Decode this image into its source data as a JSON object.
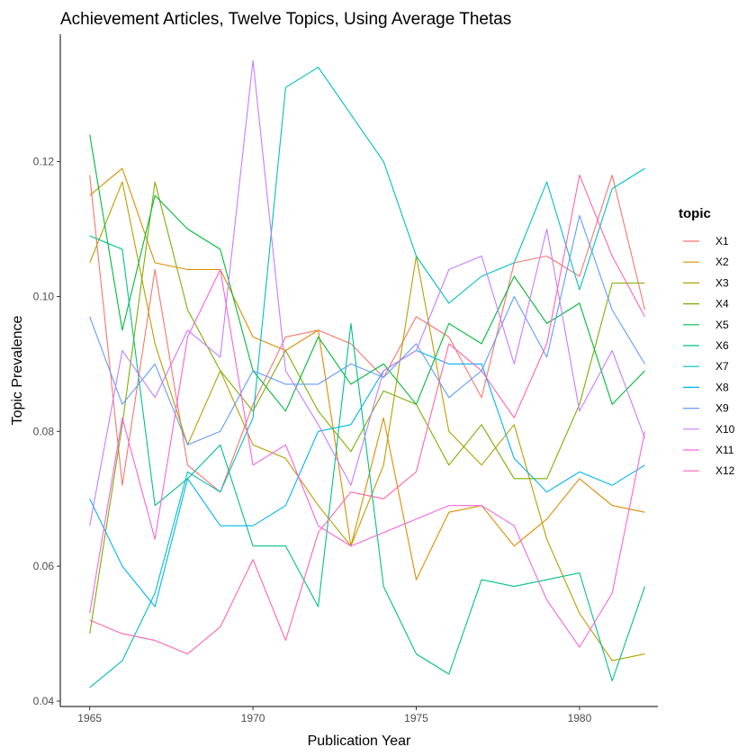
{
  "chart_data": {
    "type": "line",
    "title": "Achievement Articles, Twelve Topics, Using Average Thetas",
    "xlabel": "Publication Year",
    "ylabel": "Topic Prevalence",
    "xlim": [
      1964.1,
      1982.4
    ],
    "ylim": [
      0.0392,
      0.1389
    ],
    "x_ticks": [
      1965,
      1970,
      1975,
      1980
    ],
    "y_ticks": [
      0.04,
      0.06,
      0.08,
      0.1,
      0.12
    ],
    "y_tick_labels": [
      "0.04",
      "0.06",
      "0.08",
      "0.10",
      "0.12"
    ],
    "grid": false,
    "legend": {
      "title": "topic",
      "position": "right"
    },
    "x": [
      1965,
      1966,
      1967,
      1968,
      1969,
      1970,
      1971,
      1972,
      1973,
      1974,
      1975,
      1976,
      1977,
      1978,
      1979,
      1980,
      1981,
      1982
    ],
    "series": [
      {
        "name": "X1",
        "color": "#F8766D",
        "values": [
          0.118,
          0.072,
          0.104,
          0.075,
          0.071,
          0.084,
          0.094,
          0.095,
          0.093,
          0.088,
          0.097,
          0.094,
          0.085,
          0.105,
          0.106,
          0.103,
          0.118,
          0.098
        ]
      },
      {
        "name": "X2",
        "color": "#DE8C00",
        "values": [
          0.115,
          0.119,
          0.105,
          0.104,
          0.104,
          0.094,
          0.092,
          0.095,
          0.063,
          0.082,
          0.058,
          0.068,
          0.069,
          0.063,
          0.067,
          0.073,
          0.069,
          0.068
        ]
      },
      {
        "name": "X3",
        "color": "#B79F00",
        "values": [
          0.105,
          0.117,
          0.093,
          0.078,
          0.089,
          0.078,
          0.076,
          0.069,
          0.063,
          0.075,
          0.106,
          0.08,
          0.075,
          0.081,
          0.064,
          0.053,
          0.046,
          0.047
        ]
      },
      {
        "name": "X4",
        "color": "#7CAE00",
        "values": [
          0.05,
          0.081,
          0.117,
          0.098,
          0.089,
          0.083,
          0.092,
          0.083,
          0.077,
          0.086,
          0.084,
          0.075,
          0.081,
          0.073,
          0.073,
          0.084,
          0.102,
          0.102
        ]
      },
      {
        "name": "X5",
        "color": "#00BA38",
        "values": [
          0.124,
          0.095,
          0.115,
          0.11,
          0.107,
          0.089,
          0.083,
          0.094,
          0.087,
          0.09,
          0.084,
          0.096,
          0.093,
          0.103,
          0.096,
          0.099,
          0.084,
          0.089
        ]
      },
      {
        "name": "X6",
        "color": "#00C08B",
        "values": [
          0.109,
          0.107,
          0.069,
          0.073,
          0.078,
          0.063,
          0.063,
          0.054,
          0.096,
          0.057,
          0.047,
          0.044,
          0.058,
          0.057,
          0.058,
          0.059,
          0.043,
          0.057
        ]
      },
      {
        "name": "X7",
        "color": "#00BFC4",
        "values": [
          0.042,
          0.046,
          0.056,
          0.074,
          0.071,
          0.082,
          0.131,
          0.134,
          0.127,
          0.12,
          0.106,
          0.099,
          0.103,
          0.105,
          0.117,
          0.101,
          0.116,
          0.119
        ]
      },
      {
        "name": "X8",
        "color": "#00B4F0",
        "values": [
          0.07,
          0.06,
          0.054,
          0.073,
          0.066,
          0.066,
          0.069,
          0.08,
          0.081,
          0.089,
          0.092,
          0.09,
          0.09,
          0.076,
          0.071,
          0.074,
          0.072,
          0.075
        ]
      },
      {
        "name": "X9",
        "color": "#619CFF",
        "values": [
          0.097,
          0.084,
          0.09,
          0.078,
          0.08,
          0.089,
          0.087,
          0.087,
          0.09,
          0.088,
          0.093,
          0.085,
          0.089,
          0.1,
          0.091,
          0.112,
          0.098,
          0.09
        ]
      },
      {
        "name": "X10",
        "color": "#C77CFF",
        "values": [
          0.066,
          0.092,
          0.085,
          0.095,
          0.091,
          0.135,
          0.089,
          0.081,
          0.072,
          0.089,
          0.092,
          0.104,
          0.106,
          0.09,
          0.11,
          0.083,
          0.092,
          0.079
        ]
      },
      {
        "name": "X11",
        "color": "#F564E3",
        "values": [
          0.053,
          0.082,
          0.064,
          0.094,
          0.104,
          0.075,
          0.078,
          0.066,
          0.063,
          0.065,
          0.067,
          0.069,
          0.069,
          0.066,
          0.055,
          0.048,
          0.056,
          0.08
        ]
      },
      {
        "name": "X12",
        "color": "#FF64B0",
        "values": [
          0.052,
          0.05,
          0.049,
          0.047,
          0.051,
          0.061,
          0.049,
          0.065,
          0.071,
          0.07,
          0.074,
          0.093,
          0.089,
          0.082,
          0.093,
          0.118,
          0.106,
          0.097
        ]
      }
    ]
  }
}
